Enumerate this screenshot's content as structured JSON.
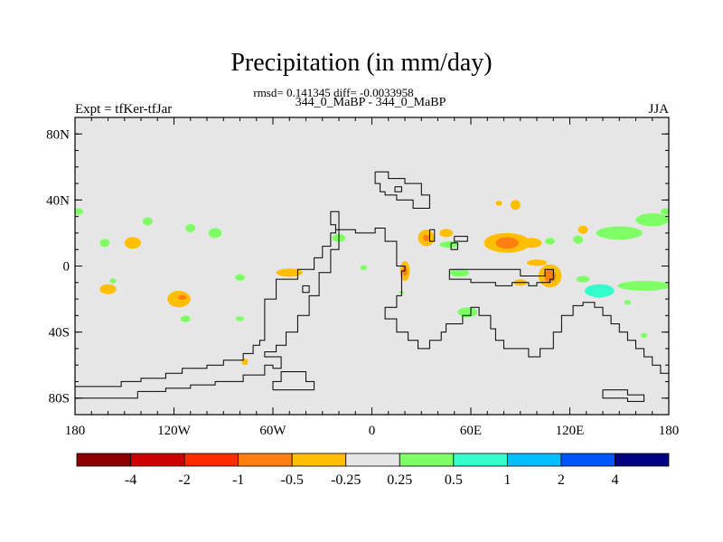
{
  "title": "Precipitation (in mm/day)",
  "stats_line": "rmsd= 0.141345 diff= -0.0033958",
  "subtitle": "344_0_MaBP - 344_0_MaBP",
  "left_label": "Expt = tfKer-tfJar",
  "right_label": "JJA",
  "chart_data": {
    "type": "heatmap",
    "projection": "cylindrical-equidistant",
    "xlim": [
      -180,
      180
    ],
    "ylim": [
      -90,
      90
    ],
    "x_ticks": [
      {
        "value": -180,
        "label": "180"
      },
      {
        "value": -120,
        "label": "120W"
      },
      {
        "value": -60,
        "label": "60W"
      },
      {
        "value": 0,
        "label": "0"
      },
      {
        "value": 60,
        "label": "60E"
      },
      {
        "value": 120,
        "label": "120E"
      },
      {
        "value": 180,
        "label": "180"
      }
    ],
    "y_ticks": [
      {
        "value": 80,
        "label": "80N"
      },
      {
        "value": 40,
        "label": "40N"
      },
      {
        "value": 0,
        "label": "0"
      },
      {
        "value": -40,
        "label": "40S"
      },
      {
        "value": -80,
        "label": "80S"
      }
    ],
    "background_color": "#e6e6e6",
    "colorbar": {
      "colors": [
        "#8b0000",
        "#cc0000",
        "#ff2a00",
        "#ff7f11",
        "#ffbf00",
        "#e6e6e6",
        "#7fff66",
        "#33ffcc",
        "#00bfff",
        "#0055ff",
        "#000080"
      ],
      "labels": [
        "-4",
        "-2",
        "-1",
        "-0.5",
        "-0.25",
        "0.25",
        "0.5",
        "1",
        "2",
        "4"
      ]
    },
    "anomalies": [
      {
        "lon": -145,
        "lat": 14,
        "rx": 5,
        "ry": 3.5,
        "level": "-0.25"
      },
      {
        "lon": -162,
        "lat": 14,
        "rx": 3,
        "ry": 2.5,
        "level": "0.25"
      },
      {
        "lon": -136,
        "lat": 27,
        "rx": 3,
        "ry": 2.5,
        "level": "0.25"
      },
      {
        "lon": -110,
        "lat": 23,
        "rx": 3,
        "ry": 2.5,
        "level": "0.25"
      },
      {
        "lon": -95,
        "lat": 20,
        "rx": 4,
        "ry": 3,
        "level": "0.25"
      },
      {
        "lon": -160,
        "lat": -14,
        "rx": 5,
        "ry": 3,
        "level": "-0.25"
      },
      {
        "lon": -157,
        "lat": -9,
        "rx": 2,
        "ry": 1.5,
        "level": "0.25"
      },
      {
        "lon": -117,
        "lat": -20,
        "rx": 7,
        "ry": 5,
        "level": "-0.25"
      },
      {
        "lon": -115,
        "lat": -19,
        "rx": 2.5,
        "ry": 1.5,
        "level": "-0.5"
      },
      {
        "lon": -113,
        "lat": -32,
        "rx": 3,
        "ry": 2,
        "level": "0.25"
      },
      {
        "lon": -80,
        "lat": -32,
        "rx": 2.5,
        "ry": 1.5,
        "level": "0.25"
      },
      {
        "lon": -50,
        "lat": -4,
        "rx": 8,
        "ry": 2.5,
        "level": "-0.25"
      },
      {
        "lon": -80,
        "lat": -7,
        "rx": 3,
        "ry": 2,
        "level": "0.25"
      },
      {
        "lon": -77,
        "lat": -58,
        "rx": 2,
        "ry": 2,
        "level": "-0.25"
      },
      {
        "lon": -20,
        "lat": 17,
        "rx": 4,
        "ry": 2.5,
        "level": "0.25"
      },
      {
        "lon": -5,
        "lat": -1,
        "rx": 2,
        "ry": 1.5,
        "level": "0.25"
      },
      {
        "lon": 20,
        "lat": -3,
        "rx": 3,
        "ry": 6,
        "level": "-0.25"
      },
      {
        "lon": 20,
        "lat": -3,
        "rx": 1.5,
        "ry": 3,
        "level": "-0.5"
      },
      {
        "lon": 18,
        "lat": -16,
        "rx": 1.5,
        "ry": 1,
        "level": "0.25"
      },
      {
        "lon": 33,
        "lat": 17,
        "rx": 5,
        "ry": 5,
        "level": "-0.25"
      },
      {
        "lon": 33,
        "lat": 17,
        "rx": 2,
        "ry": 2,
        "level": "-0.5"
      },
      {
        "lon": 45,
        "lat": 20,
        "rx": 4,
        "ry": 2.5,
        "level": "-0.25"
      },
      {
        "lon": 47,
        "lat": 13,
        "rx": 6,
        "ry": 2,
        "level": "0.25"
      },
      {
        "lon": 53,
        "lat": -4,
        "rx": 6,
        "ry": 2.5,
        "level": "0.25"
      },
      {
        "lon": 58,
        "lat": -28,
        "rx": 6,
        "ry": 3,
        "level": "0.25"
      },
      {
        "lon": 82,
        "lat": 14,
        "rx": 14,
        "ry": 6,
        "level": "-0.25"
      },
      {
        "lon": 82,
        "lat": 14,
        "rx": 7,
        "ry": 3.5,
        "level": "-0.5"
      },
      {
        "lon": 97,
        "lat": 14,
        "rx": 6,
        "ry": 3,
        "level": "-0.25"
      },
      {
        "lon": 100,
        "lat": 2,
        "rx": 6,
        "ry": 2,
        "level": "-0.25"
      },
      {
        "lon": 108,
        "lat": -6,
        "rx": 7,
        "ry": 7,
        "level": "-0.25"
      },
      {
        "lon": 108,
        "lat": -6,
        "rx": 3.5,
        "ry": 4,
        "level": "-0.5"
      },
      {
        "lon": 90,
        "lat": -10,
        "rx": 4,
        "ry": 2,
        "level": "-0.25"
      },
      {
        "lon": 108,
        "lat": 15,
        "rx": 3,
        "ry": 2,
        "level": "0.25"
      },
      {
        "lon": 125,
        "lat": 16,
        "rx": 3,
        "ry": 2.5,
        "level": "0.25"
      },
      {
        "lon": 128,
        "lat": 22,
        "rx": 3,
        "ry": 2.5,
        "level": "-0.25"
      },
      {
        "lon": 150,
        "lat": 20,
        "rx": 14,
        "ry": 4,
        "level": "0.25"
      },
      {
        "lon": 170,
        "lat": 28,
        "rx": 10,
        "ry": 4,
        "level": "0.25"
      },
      {
        "lon": 128,
        "lat": -8,
        "rx": 4,
        "ry": 2,
        "level": "0.25"
      },
      {
        "lon": 138,
        "lat": -15,
        "rx": 9,
        "ry": 4,
        "level": "0.5"
      },
      {
        "lon": 165,
        "lat": -12,
        "rx": 16,
        "ry": 3,
        "level": "0.25"
      },
      {
        "lon": 178,
        "lat": 33,
        "rx": 3,
        "ry": 2,
        "level": "0.25"
      },
      {
        "lon": -178,
        "lat": 33,
        "rx": 3,
        "ry": 2,
        "level": "0.25"
      },
      {
        "lon": 87,
        "lat": 37,
        "rx": 3,
        "ry": 3,
        "level": "-0.25"
      },
      {
        "lon": 77,
        "lat": 38,
        "rx": 2,
        "ry": 1.5,
        "level": "-0.25"
      },
      {
        "lon": 155,
        "lat": -22,
        "rx": 2,
        "ry": 1.5,
        "level": "0.25"
      },
      {
        "lon": 165,
        "lat": -42,
        "rx": 2,
        "ry": 1.5,
        "level": "0.25"
      }
    ],
    "coastlines": [
      [
        [
          -180,
          -73
        ],
        [
          -152,
          -73
        ],
        [
          -152,
          -70
        ],
        [
          -140,
          -70
        ],
        [
          -140,
          -68
        ],
        [
          -125,
          -68
        ],
        [
          -125,
          -65
        ],
        [
          -115,
          -65
        ],
        [
          -115,
          -62
        ],
        [
          -100,
          -62
        ],
        [
          -100,
          -60
        ],
        [
          -90,
          -60
        ],
        [
          -90,
          -57
        ],
        [
          -78,
          -57
        ],
        [
          -78,
          -53
        ],
        [
          -72,
          -53
        ],
        [
          -72,
          -48
        ],
        [
          -68,
          -48
        ],
        [
          -68,
          -45
        ],
        [
          -65,
          -45
        ],
        [
          -65,
          -20
        ],
        [
          -58,
          -20
        ],
        [
          -58,
          -8
        ],
        [
          -45,
          -8
        ],
        [
          -45,
          -2
        ],
        [
          -35,
          -2
        ],
        [
          -35,
          5
        ],
        [
          -30,
          5
        ],
        [
          -30,
          12
        ],
        [
          -25,
          12
        ],
        [
          -25,
          20
        ],
        [
          -22,
          20
        ],
        [
          -22,
          25
        ],
        [
          -25,
          25
        ],
        [
          -25,
          33
        ],
        [
          -20,
          33
        ],
        [
          -20,
          22
        ],
        [
          -10,
          22
        ],
        [
          -10,
          20
        ],
        [
          2,
          20
        ],
        [
          2,
          23
        ],
        [
          8,
          23
        ],
        [
          8,
          15
        ],
        [
          15,
          15
        ],
        [
          15,
          0
        ],
        [
          20,
          0
        ],
        [
          20,
          -3
        ],
        [
          18,
          -3
        ],
        [
          18,
          -18
        ],
        [
          15,
          -18
        ],
        [
          15,
          -25
        ],
        [
          8,
          -25
        ],
        [
          8,
          -32
        ],
        [
          15,
          -32
        ],
        [
          15,
          -40
        ],
        [
          22,
          -40
        ],
        [
          22,
          -45
        ],
        [
          28,
          -45
        ],
        [
          28,
          -50
        ],
        [
          35,
          -50
        ],
        [
          35,
          -45
        ],
        [
          42,
          -45
        ],
        [
          42,
          -40
        ],
        [
          45,
          -40
        ],
        [
          45,
          -35
        ],
        [
          55,
          -35
        ],
        [
          55,
          -30
        ],
        [
          60,
          -30
        ],
        [
          60,
          -25
        ],
        [
          65,
          -25
        ],
        [
          65,
          -30
        ],
        [
          72,
          -30
        ],
        [
          72,
          -38
        ],
        [
          75,
          -38
        ],
        [
          75,
          -45
        ],
        [
          80,
          -45
        ],
        [
          80,
          -50
        ],
        [
          95,
          -50
        ],
        [
          95,
          -55
        ],
        [
          102,
          -55
        ],
        [
          102,
          -50
        ],
        [
          110,
          -50
        ],
        [
          110,
          -40
        ],
        [
          115,
          -40
        ],
        [
          115,
          -30
        ],
        [
          122,
          -30
        ],
        [
          122,
          -24
        ],
        [
          128,
          -24
        ],
        [
          128,
          -22
        ],
        [
          135,
          -22
        ],
        [
          135,
          -25
        ],
        [
          140,
          -25
        ],
        [
          140,
          -30
        ],
        [
          145,
          -30
        ],
        [
          145,
          -35
        ],
        [
          150,
          -35
        ],
        [
          150,
          -40
        ],
        [
          155,
          -40
        ],
        [
          155,
          -45
        ],
        [
          160,
          -45
        ],
        [
          160,
          -50
        ],
        [
          165,
          -50
        ],
        [
          165,
          -55
        ],
        [
          170,
          -55
        ],
        [
          170,
          -60
        ],
        [
          175,
          -60
        ],
        [
          175,
          -65
        ],
        [
          180,
          -65
        ]
      ],
      [
        [
          -180,
          -80
        ],
        [
          -142,
          -80
        ],
        [
          -142,
          -76
        ],
        [
          -125,
          -76
        ],
        [
          -125,
          -74
        ],
        [
          -110,
          -74
        ],
        [
          -110,
          -72
        ],
        [
          -95,
          -72
        ],
        [
          -95,
          -70
        ],
        [
          -78,
          -70
        ],
        [
          -78,
          -66
        ],
        [
          -65,
          -66
        ],
        [
          -65,
          -60
        ],
        [
          -60,
          -60
        ],
        [
          -60,
          -62
        ],
        [
          -55,
          -62
        ],
        [
          -55,
          -55
        ],
        [
          -65,
          -55
        ],
        [
          -65,
          -52
        ],
        [
          -58,
          -52
        ],
        [
          -58,
          -48
        ],
        [
          -52,
          -48
        ],
        [
          -52,
          -40
        ],
        [
          -45,
          -40
        ],
        [
          -45,
          -30
        ],
        [
          -38,
          -30
        ],
        [
          -38,
          -18
        ],
        [
          -32,
          -18
        ],
        [
          -32,
          -4
        ],
        [
          -25,
          -4
        ],
        [
          -25,
          10
        ],
        [
          -20,
          10
        ],
        [
          -20,
          22
        ],
        [
          -22,
          22
        ]
      ],
      [
        [
          -60,
          -75
        ],
        [
          -35,
          -75
        ],
        [
          -35,
          -70
        ],
        [
          -40,
          -70
        ],
        [
          -40,
          -64
        ],
        [
          -55,
          -64
        ],
        [
          -55,
          -70
        ],
        [
          -60,
          -70
        ],
        [
          -60,
          -75
        ]
      ],
      [
        [
          -42,
          -12
        ],
        [
          -38,
          -12
        ],
        [
          -38,
          -16
        ],
        [
          -42,
          -16
        ],
        [
          -42,
          -12
        ]
      ],
      [
        [
          2,
          57
        ],
        [
          10,
          57
        ],
        [
          10,
          53
        ],
        [
          20,
          53
        ],
        [
          20,
          50
        ],
        [
          30,
          50
        ],
        [
          30,
          43
        ],
        [
          35,
          43
        ],
        [
          35,
          35
        ],
        [
          25,
          35
        ],
        [
          25,
          40
        ],
        [
          15,
          40
        ],
        [
          15,
          43
        ],
        [
          8,
          43
        ],
        [
          8,
          45
        ],
        [
          5,
          45
        ],
        [
          5,
          50
        ],
        [
          2,
          50
        ],
        [
          2,
          57
        ]
      ],
      [
        [
          14,
          48
        ],
        [
          18,
          48
        ],
        [
          18,
          45
        ],
        [
          14,
          45
        ],
        [
          14,
          48
        ]
      ],
      [
        [
          35,
          22
        ],
        [
          38,
          22
        ],
        [
          38,
          15
        ],
        [
          35,
          15
        ],
        [
          35,
          22
        ]
      ],
      [
        [
          50,
          18
        ],
        [
          58,
          18
        ],
        [
          58,
          15
        ],
        [
          50,
          15
        ],
        [
          50,
          18
        ]
      ],
      [
        [
          48,
          14
        ],
        [
          52,
          14
        ],
        [
          52,
          10
        ],
        [
          48,
          10
        ],
        [
          48,
          14
        ]
      ],
      [
        [
          47,
          -2
        ],
        [
          90,
          -2
        ],
        [
          90,
          -6
        ],
        [
          105,
          -6
        ],
        [
          105,
          -2
        ],
        [
          110,
          -2
        ],
        [
          110,
          -8
        ],
        [
          108,
          -8
        ],
        [
          108,
          -10
        ],
        [
          100,
          -10
        ],
        [
          100,
          -12
        ],
        [
          95,
          -12
        ],
        [
          95,
          -10
        ],
        [
          85,
          -10
        ],
        [
          85,
          -12
        ],
        [
          75,
          -12
        ],
        [
          75,
          -10
        ],
        [
          60,
          -10
        ],
        [
          60,
          -8
        ],
        [
          47,
          -8
        ],
        [
          47,
          -2
        ]
      ],
      [
        [
          140,
          -75
        ],
        [
          155,
          -75
        ],
        [
          155,
          -78
        ],
        [
          165,
          -78
        ],
        [
          165,
          -82
        ],
        [
          155,
          -82
        ],
        [
          155,
          -80
        ],
        [
          140,
          -80
        ],
        [
          140,
          -75
        ]
      ]
    ]
  }
}
